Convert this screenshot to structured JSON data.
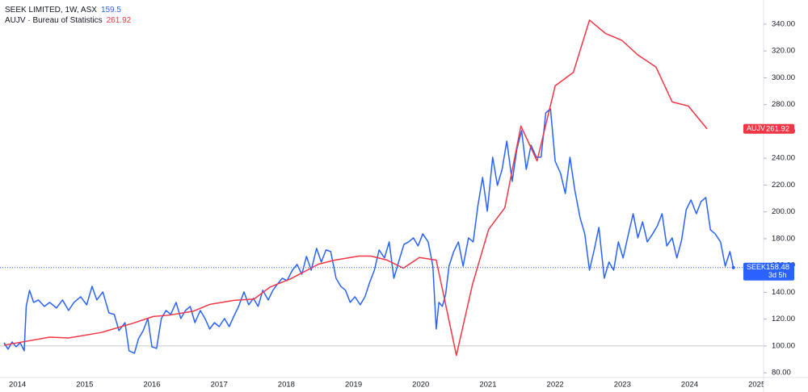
{
  "chart_data": {
    "type": "line",
    "xlim": [
      2013.74,
      2025.1
    ],
    "xticks": [
      2014,
      2015,
      2016,
      2017,
      2018,
      2019,
      2020,
      2021,
      2022,
      2023,
      2024,
      2025
    ],
    "ylim": [
      76.5,
      358
    ],
    "yticks": [
      {
        "value": 80,
        "label": "80.00"
      },
      {
        "value": 100,
        "label": "100.00"
      },
      {
        "value": 120,
        "label": "120.00"
      },
      {
        "value": 140,
        "label": "140.00"
      },
      {
        "value": 160,
        "label": "160.00"
      },
      {
        "value": 180,
        "label": "180.00"
      },
      {
        "value": 200,
        "label": "200.00"
      },
      {
        "value": 220,
        "label": "220.00"
      },
      {
        "value": 240,
        "label": "240.00"
      },
      {
        "value": 260,
        "label": "260.00"
      },
      {
        "value": 280,
        "label": "280.00"
      },
      {
        "value": 300,
        "label": "300.00"
      },
      {
        "value": 320,
        "label": "320.00"
      },
      {
        "value": 340,
        "label": "340.00"
      }
    ],
    "grid": false,
    "baseline": 100,
    "countdown": "3d 5h",
    "series": [
      {
        "name": "SEEK LIMITED, 1W, ASX",
        "short_name": "SEEK",
        "color": "#2962ff",
        "x": [
          2013.8,
          2013.86,
          2013.92,
          2013.98,
          2014.04,
          2014.1,
          2014.13,
          2014.18,
          2014.24,
          2014.31,
          2014.4,
          2014.48,
          2014.58,
          2014.67,
          2014.76,
          2014.84,
          2014.94,
          2015.03,
          2015.11,
          2015.18,
          2015.27,
          2015.36,
          2015.44,
          2015.51,
          2015.6,
          2015.66,
          2015.74,
          2015.8,
          2015.87,
          2015.94,
          2016.0,
          2016.07,
          2016.14,
          2016.21,
          2016.28,
          2016.36,
          2016.43,
          2016.5,
          2016.57,
          2016.64,
          2016.72,
          2016.79,
          2016.86,
          2016.93,
          2017.0,
          2017.08,
          2017.15,
          2017.22,
          2017.29,
          2017.37,
          2017.44,
          2017.51,
          2017.58,
          2017.65,
          2017.73,
          2017.8,
          2017.87,
          2017.94,
          2018.01,
          2018.09,
          2018.16,
          2018.23,
          2018.3,
          2018.37,
          2018.45,
          2018.52,
          2018.59,
          2018.66,
          2018.74,
          2018.81,
          2018.88,
          2018.95,
          2019.02,
          2019.1,
          2019.17,
          2019.24,
          2019.31,
          2019.38,
          2019.46,
          2019.53,
          2019.6,
          2019.67,
          2019.75,
          2019.82,
          2019.89,
          2019.96,
          2020.03,
          2020.11,
          2020.18,
          2020.23,
          2020.27,
          2020.32,
          2020.37,
          2020.42,
          2020.49,
          2020.56,
          2020.63,
          2020.71,
          2020.78,
          2020.85,
          2020.92,
          2020.99,
          2021.07,
          2021.14,
          2021.21,
          2021.28,
          2021.36,
          2021.43,
          2021.5,
          2021.57,
          2021.64,
          2021.72,
          2021.79,
          2021.86,
          2021.93,
          2022.0,
          2022.08,
          2022.15,
          2022.22,
          2022.29,
          2022.37,
          2022.44,
          2022.51,
          2022.58,
          2022.65,
          2022.73,
          2022.8,
          2022.87,
          2022.94,
          2023.01,
          2023.09,
          2023.16,
          2023.23,
          2023.3,
          2023.37,
          2023.45,
          2023.52,
          2023.59,
          2023.66,
          2023.74,
          2023.81,
          2023.88,
          2023.95,
          2024.02,
          2024.1,
          2024.17,
          2024.24,
          2024.31,
          2024.38,
          2024.46,
          2024.53,
          2024.6,
          2024.65
        ],
        "values": [
          102.4,
          97.6,
          103.0,
          99.4,
          102.4,
          96.4,
          129.5,
          141.5,
          132.5,
          134.3,
          129.5,
          132.5,
          128.3,
          134.3,
          126.5,
          132.5,
          136.7,
          130.7,
          144.5,
          134.3,
          140.3,
          124.7,
          123.5,
          111.4,
          117.4,
          96.4,
          94.6,
          105.4,
          111.4,
          120.5,
          99.4,
          98.2,
          120.5,
          126.5,
          123.5,
          132.5,
          120.5,
          126.5,
          129.5,
          117.4,
          126.5,
          120.5,
          112.6,
          117.4,
          114.4,
          120.5,
          114.4,
          122.3,
          129.5,
          140.3,
          130.7,
          135.5,
          129.5,
          141.5,
          134.3,
          141.5,
          146.3,
          150.5,
          148.7,
          156.5,
          160.8,
          153.5,
          166.8,
          156.5,
          172.8,
          162.6,
          171.6,
          170.4,
          150.5,
          144.5,
          141.5,
          132.5,
          136.7,
          130.7,
          136.7,
          147.5,
          156.5,
          171.6,
          165.6,
          177.6,
          150.5,
          162.6,
          175.8,
          177.6,
          180.6,
          174.6,
          183.6,
          177.6,
          159.5,
          112.6,
          132.5,
          129.5,
          138.5,
          159.5,
          170.4,
          177.6,
          159.5,
          180.6,
          177.6,
          204.7,
          225.7,
          200.5,
          240.8,
          219.7,
          231.7,
          252.8,
          222.7,
          246.8,
          260.6,
          231.7,
          249.8,
          240.8,
          240.8,
          273.8,
          276.8,
          237.7,
          228.7,
          213.7,
          240.8,
          216.7,
          195.6,
          183.6,
          156.5,
          171.6,
          188.4,
          150.5,
          162.6,
          156.5,
          177.6,
          165.6,
          183.6,
          198.6,
          180.6,
          192.6,
          177.6,
          183.6,
          189.6,
          198.6,
          174.6,
          180.6,
          165.6,
          178.8,
          201.7,
          208.9,
          198.6,
          207.7,
          210.7,
          186.6,
          183.6,
          177.6,
          159.5,
          170.4,
          158.48
        ]
      },
      {
        "name": "AUJV · Bureau of Statistics",
        "short_name": "AUJV",
        "color": "#f23645",
        "x": [
          2013.8,
          2014.48,
          2014.76,
          2015.24,
          2015.72,
          2016.02,
          2016.26,
          2016.62,
          2016.86,
          2017.22,
          2017.52,
          2017.76,
          2018.06,
          2018.48,
          2018.72,
          2019.08,
          2019.26,
          2019.5,
          2019.74,
          2019.98,
          2020.23,
          2020.53,
          2020.77,
          2021.01,
          2021.25,
          2021.49,
          2021.73,
          2022.0,
          2022.27,
          2022.51,
          2022.75,
          2022.99,
          2023.23,
          2023.5,
          2023.74,
          2023.98,
          2024.26
        ],
        "values": [
          100.6,
          106.6,
          106,
          110,
          117,
          122,
          123,
          126,
          131,
          134,
          135,
          144,
          150,
          161,
          164,
          167,
          167,
          164,
          158,
          166,
          164,
          93,
          146,
          187,
          203,
          264,
          238,
          294,
          304,
          343,
          333,
          328,
          317,
          308,
          282,
          279,
          261.92
        ]
      }
    ]
  }
}
